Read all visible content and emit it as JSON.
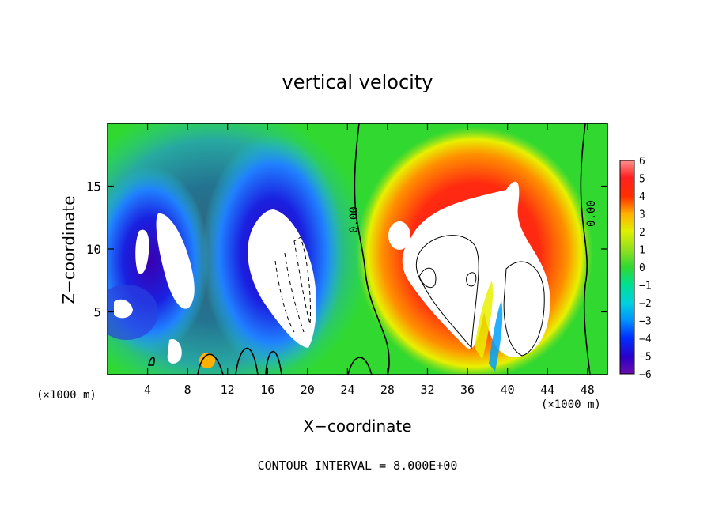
{
  "chart_data": {
    "type": "heatmap",
    "title": "vertical velocity",
    "xlabel": "X−coordinate",
    "ylabel": "Z−coordinate",
    "x_unit_left": "(×1000 m)",
    "x_unit_right": "(×1000 m)",
    "footer": "CONTOUR INTERVAL = 8.000E+00",
    "xlim": [
      0,
      50
    ],
    "ylim": [
      0,
      20
    ],
    "xticks": [
      4,
      8,
      12,
      16,
      20,
      24,
      28,
      32,
      36,
      40,
      44,
      48
    ],
    "yticks": [
      5,
      10,
      15
    ],
    "colorbar": {
      "min": -6,
      "max": 6,
      "tick_labels": [
        "6",
        "5",
        "4",
        "3",
        "2",
        "1",
        "0",
        "−1",
        "−2",
        "−3",
        "−4",
        "−5",
        "−6"
      ]
    },
    "contour_labels": [
      {
        "text": "0.00",
        "x": 24.5,
        "y": 12.5
      },
      {
        "text": "0.00",
        "x": 47.5,
        "y": 12.5
      }
    ],
    "field_features": [
      {
        "kind": "downdraft",
        "x": 3.5,
        "y": 9,
        "value": -6
      },
      {
        "kind": "downdraft",
        "x": 7,
        "y": 9,
        "value": -6
      },
      {
        "kind": "downdraft",
        "x": 17.5,
        "y": 8,
        "value": -6
      },
      {
        "kind": "updraft",
        "x": 34,
        "y": 10,
        "value": 6
      },
      {
        "kind": "updraft",
        "x": 40,
        "y": 9,
        "value": 6
      }
    ]
  }
}
